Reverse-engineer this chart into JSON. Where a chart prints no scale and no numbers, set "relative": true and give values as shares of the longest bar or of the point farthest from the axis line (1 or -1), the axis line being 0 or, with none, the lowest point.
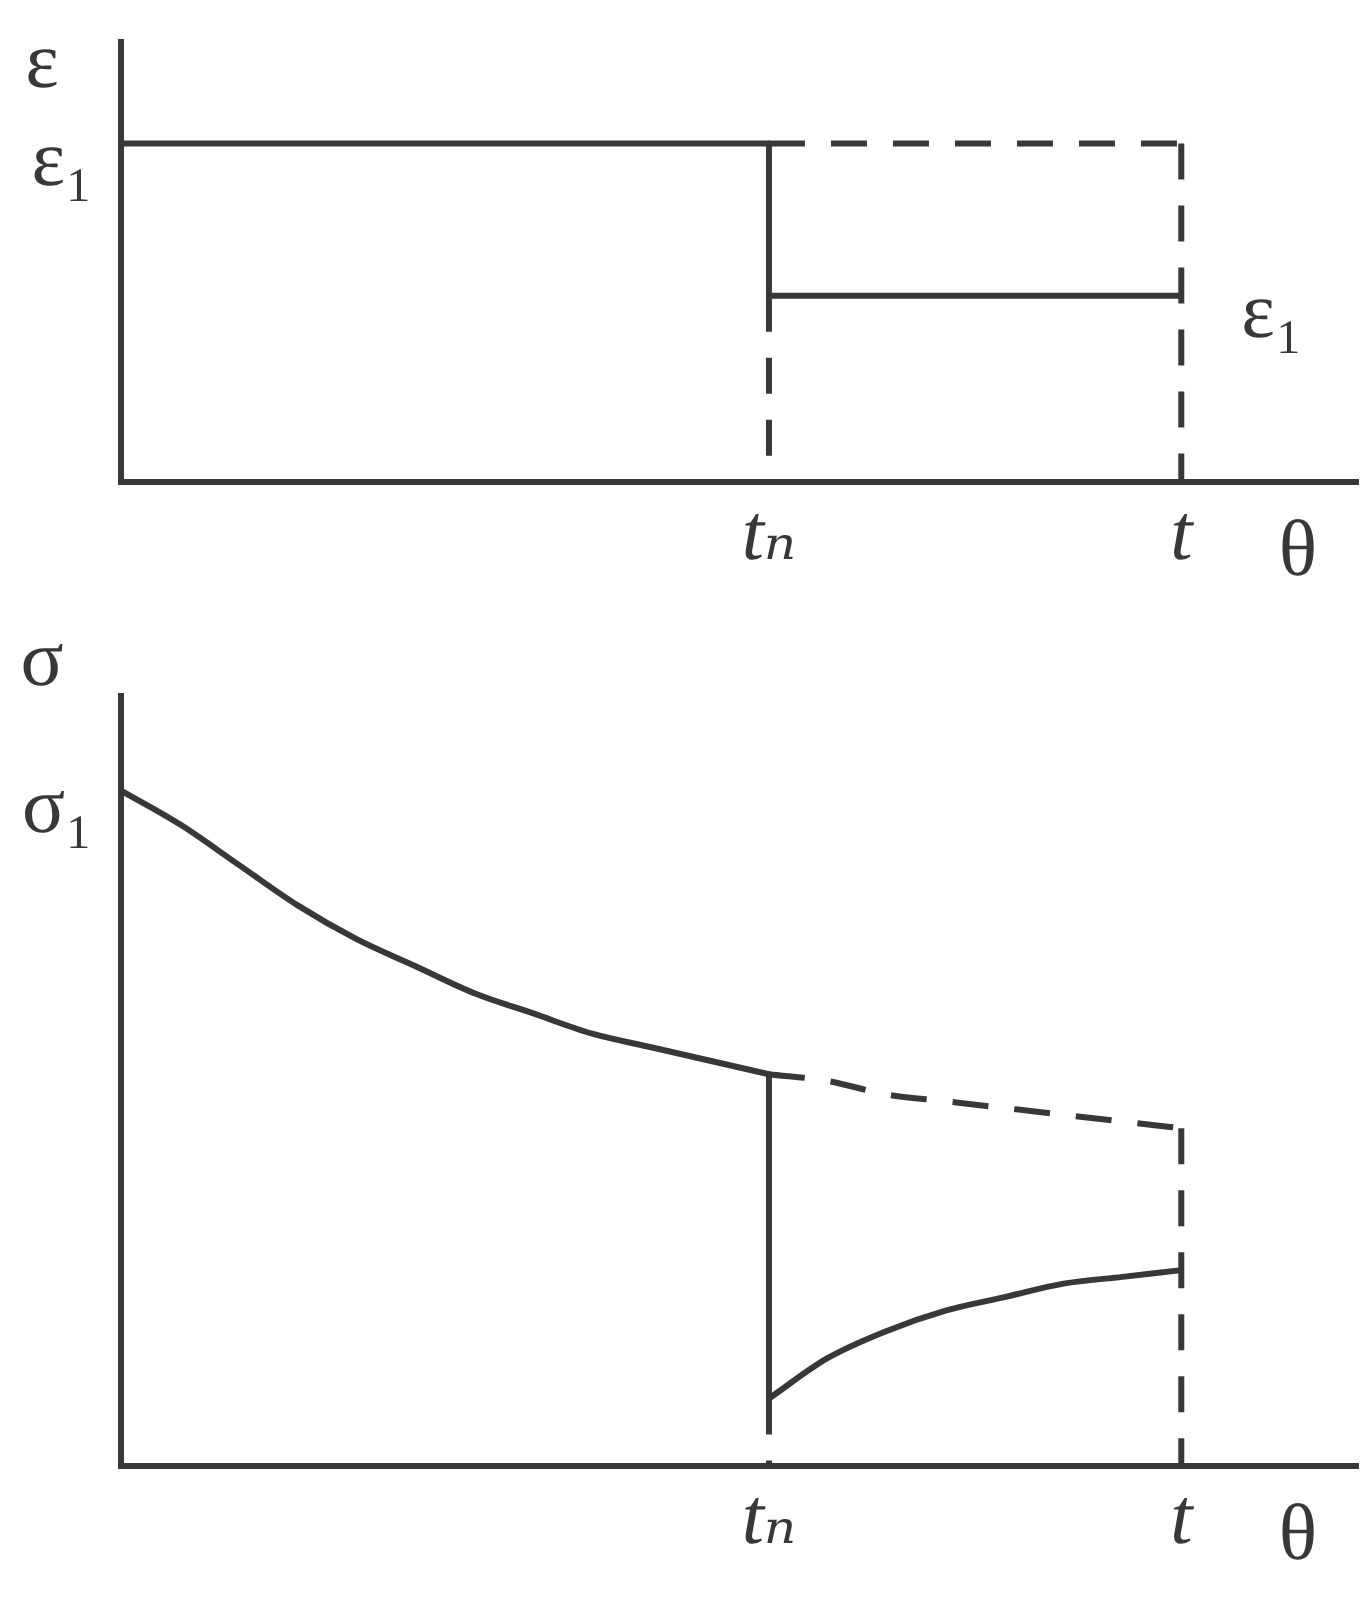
{
  "chart_data": [
    {
      "type": "line",
      "relative": true,
      "ylabel": "ε",
      "xlabel": "θ",
      "categories": [
        null,
        null,
        null,
        null,
        null,
        null,
        null,
        null,
        null,
        null,
        null,
        "tₙ",
        null,
        null,
        null,
        null,
        null,
        null,
        "t",
        null,
        null,
        null
      ],
      "series": [
        {
          "color": "#383838",
          "line_style": "solid",
          "values": [
            1,
            1,
            1,
            1,
            1,
            1,
            1,
            1,
            1,
            1,
            1,
            1,
            null,
            null,
            null,
            null,
            null,
            null,
            null,
            null,
            null,
            null
          ]
        },
        {
          "color": "#383838",
          "line_style": "solid",
          "x": [
            "tₙ",
            "tₙ"
          ],
          "values": [
            1,
            0.55
          ]
        },
        {
          "color": "#383838",
          "line_style": "solid",
          "values": [
            null,
            null,
            null,
            null,
            null,
            null,
            null,
            null,
            null,
            null,
            null,
            0.55,
            0.55,
            0.55,
            0.55,
            0.55,
            0.55,
            0.55,
            0.55,
            null,
            null,
            null
          ]
        },
        {
          "color": "#383838",
          "line_style": "dashed",
          "values": [
            null,
            null,
            null,
            null,
            null,
            null,
            null,
            null,
            null,
            null,
            null,
            1,
            1,
            1,
            1,
            1,
            1,
            1,
            1,
            null,
            null,
            null
          ]
        },
        {
          "color": "#383838",
          "line_style": "dashed",
          "x": [
            "t",
            "t"
          ],
          "values": [
            1,
            0
          ]
        },
        {
          "color": "#383838",
          "line_style": "dashed",
          "x": [
            "tₙ",
            "tₙ"
          ],
          "values": [
            0.55,
            0
          ]
        }
      ],
      "annotations": [
        "ε₁",
        {
          "text": "ε₁",
          "x": "t",
          "y": 0.55
        }
      ]
    },
    {
      "type": "line",
      "relative": true,
      "ylabel": "σ",
      "xlabel": "θ",
      "categories": [
        null,
        null,
        null,
        null,
        null,
        null,
        null,
        null,
        null,
        null,
        null,
        "tₙ",
        null,
        null,
        null,
        null,
        null,
        null,
        "t",
        null,
        null,
        null
      ],
      "series": [
        {
          "color": "#383838",
          "line_style": "solid",
          "values": [
            1,
            0.95,
            0.89,
            0.83,
            0.78,
            0.74,
            0.7,
            0.67,
            0.64,
            0.62,
            0.6,
            0.58,
            null,
            null,
            null,
            null,
            null,
            null,
            null,
            null,
            null,
            null
          ]
        },
        {
          "color": "#383838",
          "line_style": "solid",
          "x": [
            "tₙ",
            "tₙ"
          ],
          "values": [
            0.58,
            0.1
          ]
        },
        {
          "color": "#383838",
          "line_style": "solid",
          "values": [
            null,
            null,
            null,
            null,
            null,
            null,
            null,
            null,
            null,
            null,
            null,
            0.1,
            0.16,
            0.2,
            0.23,
            0.25,
            0.27,
            0.28,
            0.29,
            null,
            null,
            null
          ]
        },
        {
          "color": "#383838",
          "line_style": "dashed",
          "values": [
            null,
            null,
            null,
            null,
            null,
            null,
            null,
            null,
            null,
            null,
            null,
            0.58,
            0.57,
            0.55,
            0.54,
            0.53,
            0.52,
            0.51,
            0.5,
            null,
            null,
            null
          ]
        },
        {
          "color": "#383838",
          "line_style": "dashed",
          "x": [
            "t",
            "t"
          ],
          "values": [
            0.5,
            0
          ]
        },
        {
          "color": "#383838",
          "line_style": "dashed",
          "x": [
            "tₙ",
            "tₙ"
          ],
          "values": [
            0.1,
            0
          ]
        }
      ],
      "annotations": [
        "σ₁"
      ]
    }
  ]
}
